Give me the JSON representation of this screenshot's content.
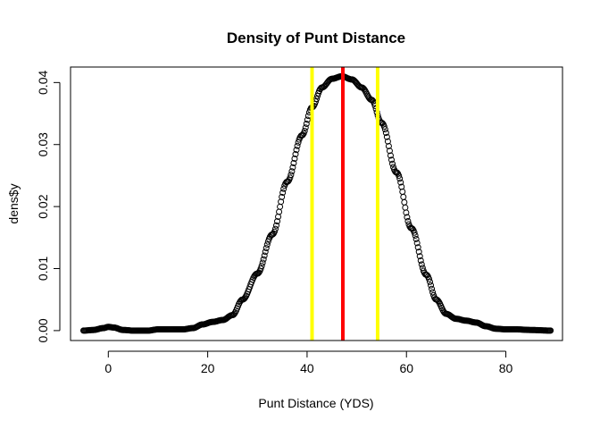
{
  "chart_data": {
    "type": "scatter",
    "title": "Density of Punt Distance",
    "xlabel": "Punt Distance (YDS)",
    "ylabel": "dens$y",
    "xlim": [
      -7.6,
      91.4
    ],
    "ylim": [
      -0.0016,
      0.0425
    ],
    "xticks": [
      "0",
      "20",
      "40",
      "60",
      "80"
    ],
    "xtick_values": [
      0,
      20,
      40,
      60,
      80
    ],
    "yticks": [
      "0.00",
      "0.01",
      "0.02",
      "0.03",
      "0.04"
    ],
    "ytick_values": [
      0,
      0.01,
      0.02,
      0.03,
      0.04
    ],
    "marker": "open-circle",
    "marker_color": "#000000",
    "x_range": [
      -5,
      89
    ],
    "curve_points": [
      [
        -5,
        0.0
      ],
      [
        -3,
        0.0001
      ],
      [
        -1,
        0.0004
      ],
      [
        0,
        0.0006
      ],
      [
        1,
        0.0005
      ],
      [
        3,
        0.0001
      ],
      [
        5,
        0.0
      ],
      [
        8,
        0.0
      ],
      [
        10,
        0.0002
      ],
      [
        15,
        0.0002
      ],
      [
        17,
        0.0004
      ],
      [
        19,
        0.001
      ],
      [
        21,
        0.0014
      ],
      [
        23,
        0.0017
      ],
      [
        25,
        0.0025
      ],
      [
        27,
        0.005
      ],
      [
        30,
        0.0092
      ],
      [
        33,
        0.0155
      ],
      [
        36,
        0.024
      ],
      [
        39,
        0.0315
      ],
      [
        41,
        0.036
      ],
      [
        43,
        0.0392
      ],
      [
        45,
        0.0406
      ],
      [
        47,
        0.041
      ],
      [
        49,
        0.0405
      ],
      [
        51,
        0.0392
      ],
      [
        53,
        0.0372
      ],
      [
        55,
        0.0335
      ],
      [
        58,
        0.0255
      ],
      [
        61,
        0.0165
      ],
      [
        64,
        0.009
      ],
      [
        66,
        0.005
      ],
      [
        68,
        0.0027
      ],
      [
        70,
        0.0019
      ],
      [
        72,
        0.0016
      ],
      [
        74,
        0.0013
      ],
      [
        76,
        0.0007
      ],
      [
        78,
        0.0003
      ],
      [
        80,
        0.0002
      ],
      [
        82,
        0.0002
      ],
      [
        85,
        0.0001
      ],
      [
        89,
        0.0
      ]
    ],
    "vlines": [
      {
        "x": 41,
        "color": "#ffff00"
      },
      {
        "x": 47.2,
        "color": "#ff0000"
      },
      {
        "x": 54.2,
        "color": "#ffff00"
      }
    ]
  }
}
